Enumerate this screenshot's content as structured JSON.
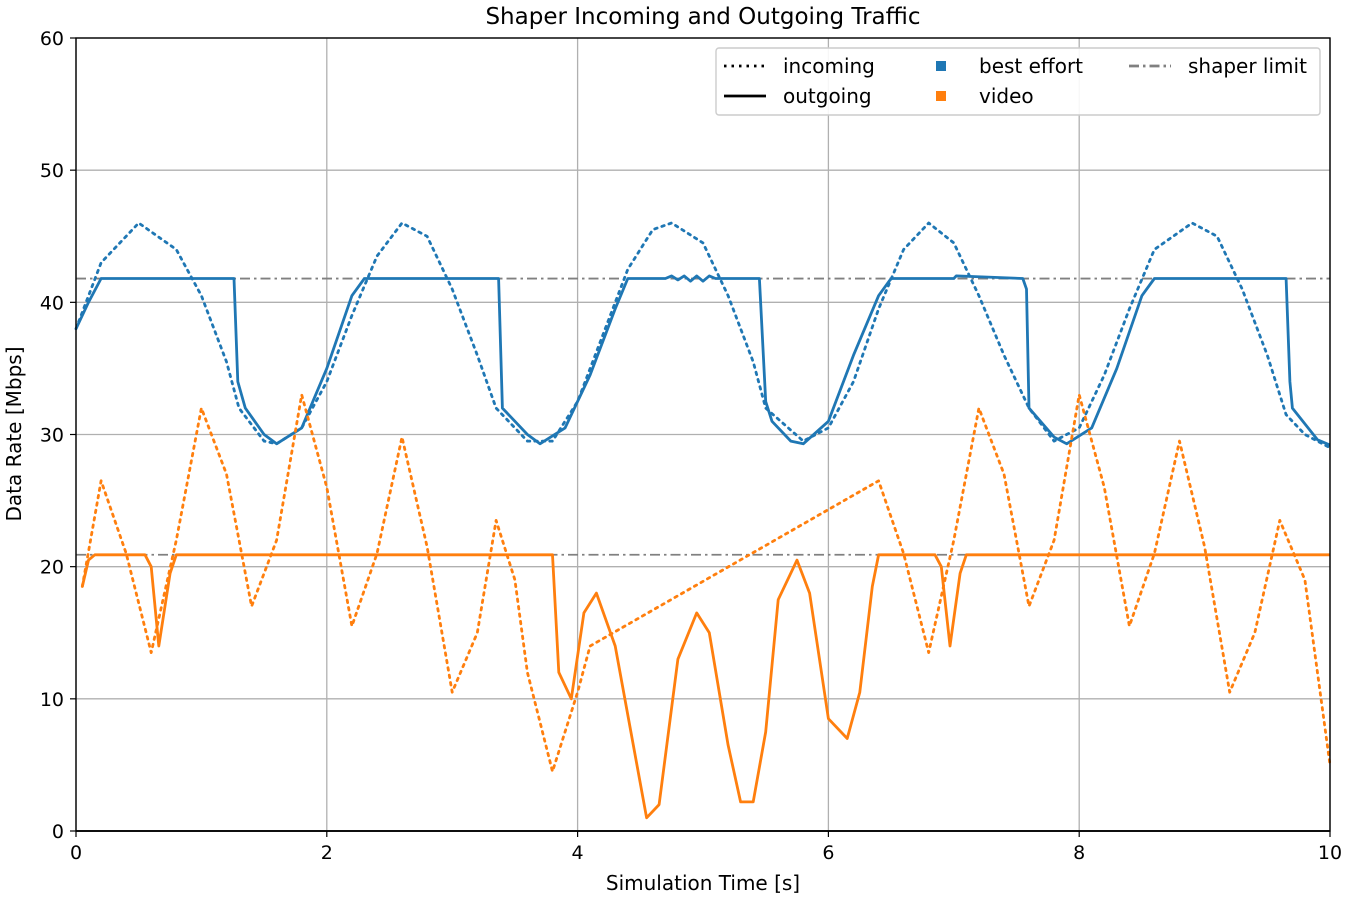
{
  "chart_data": {
    "type": "line",
    "title": "Shaper Incoming and Outgoing Traffic",
    "xlabel": "Simulation Time [s]",
    "ylabel": "Data Rate [Mbps]",
    "xlim": [
      0,
      10
    ],
    "ylim": [
      0,
      60
    ],
    "xticks": [
      0,
      2,
      4,
      6,
      8,
      10
    ],
    "yticks": [
      0,
      10,
      20,
      30,
      40,
      50,
      60
    ],
    "grid": true,
    "legend_position": "top-right",
    "legend": [
      {
        "label": "incoming",
        "kind": "line",
        "style": "dotted",
        "color": "#000000"
      },
      {
        "label": "outgoing",
        "kind": "line",
        "style": "solid",
        "color": "#000000"
      },
      {
        "label": "best effort",
        "kind": "marker",
        "color": "#1f77b4"
      },
      {
        "label": "video",
        "kind": "marker",
        "color": "#ff7f0e"
      },
      {
        "label": "shaper limit",
        "kind": "line",
        "style": "dashdot",
        "color": "#808080"
      }
    ],
    "reference_lines": [
      {
        "name": "shaper limit",
        "y": 41.8,
        "color": "#808080"
      },
      {
        "name": "shaper limit",
        "y": 20.9,
        "color": "#808080"
      }
    ],
    "series": [
      {
        "name": "best effort incoming",
        "traffic": "best effort",
        "direction": "incoming",
        "color": "#1f77b4",
        "style": "dotted",
        "x": [
          0.0,
          0.2,
          0.5,
          0.8,
          1.0,
          1.2,
          1.3,
          1.5,
          1.6,
          1.8,
          2.0,
          2.2,
          2.4,
          2.6,
          2.8,
          3.0,
          3.2,
          3.35,
          3.6,
          3.8,
          4.0,
          4.2,
          4.4,
          4.6,
          4.75,
          5.0,
          5.2,
          5.4,
          5.5,
          5.8,
          6.0,
          6.2,
          6.4,
          6.6,
          6.8,
          7.0,
          7.2,
          7.4,
          7.6,
          7.8,
          8.0,
          8.2,
          8.4,
          8.6,
          8.9,
          9.1,
          9.3,
          9.5,
          9.65,
          9.8,
          10.0
        ],
        "y": [
          38.0,
          43.0,
          46.0,
          44.0,
          40.5,
          35.5,
          32.0,
          29.5,
          29.3,
          30.5,
          34.0,
          39.0,
          43.5,
          46.0,
          45.0,
          41.0,
          36.0,
          32.0,
          29.5,
          29.5,
          32.5,
          37.5,
          42.5,
          45.5,
          46.0,
          44.5,
          40.5,
          35.5,
          32.0,
          29.5,
          30.5,
          34.0,
          39.5,
          44.0,
          46.0,
          44.5,
          40.5,
          36.0,
          32.0,
          29.5,
          30.5,
          34.5,
          39.5,
          44.0,
          46.0,
          45.0,
          41.0,
          36.0,
          31.5,
          30.0,
          29.0
        ]
      },
      {
        "name": "best effort outgoing",
        "traffic": "best effort",
        "direction": "outgoing",
        "color": "#1f77b4",
        "style": "solid",
        "x": [
          0.0,
          0.1,
          0.2,
          0.3,
          1.26,
          1.29,
          1.35,
          1.5,
          1.6,
          1.8,
          2.0,
          2.2,
          2.3,
          3.37,
          3.4,
          3.6,
          3.7,
          3.9,
          4.1,
          4.3,
          4.4,
          4.7,
          4.75,
          4.8,
          4.85,
          4.9,
          4.95,
          5.0,
          5.05,
          5.1,
          5.45,
          5.5,
          5.55,
          5.7,
          5.8,
          6.0,
          6.2,
          6.4,
          6.5,
          7.0,
          7.02,
          7.55,
          7.58,
          7.6,
          7.8,
          7.9,
          8.1,
          8.3,
          8.5,
          8.6,
          9.65,
          9.68,
          9.7,
          9.9,
          10.0
        ],
        "y": [
          38.0,
          40.0,
          41.8,
          41.8,
          41.8,
          34.0,
          32.0,
          30.0,
          29.3,
          30.5,
          35.0,
          40.5,
          41.8,
          41.8,
          32.0,
          30.0,
          29.3,
          30.5,
          34.5,
          39.5,
          41.8,
          41.8,
          42.0,
          41.7,
          42.0,
          41.6,
          42.0,
          41.6,
          42.0,
          41.8,
          41.8,
          32.5,
          31.0,
          29.5,
          29.3,
          31.0,
          36.0,
          40.5,
          41.8,
          41.8,
          42.0,
          41.8,
          41.0,
          32.0,
          29.8,
          29.3,
          30.5,
          35.0,
          40.5,
          41.8,
          41.8,
          34.0,
          32.0,
          29.6,
          29.2
        ]
      },
      {
        "name": "video incoming",
        "traffic": "video",
        "direction": "incoming",
        "color": "#ff7f0e",
        "style": "dotted",
        "x": [
          0.05,
          0.2,
          0.4,
          0.6,
          0.8,
          1.0,
          1.2,
          1.4,
          1.6,
          1.8,
          2.0,
          2.2,
          2.4,
          2.6,
          2.8,
          3.0,
          3.2,
          3.35,
          3.5,
          3.6,
          3.8,
          4.0,
          4.1,
          6.4,
          6.6,
          6.8,
          7.0,
          7.2,
          7.4,
          7.6,
          7.8,
          8.0,
          8.2,
          8.4,
          8.6,
          8.8,
          9.0,
          9.2,
          9.4,
          9.6,
          9.8,
          10.0
        ],
        "y": [
          18.5,
          26.5,
          21.0,
          13.5,
          22.0,
          32.0,
          27.0,
          17.0,
          22.0,
          33.0,
          26.0,
          15.5,
          21.0,
          29.8,
          21.5,
          10.5,
          15.0,
          23.5,
          19.0,
          12.0,
          4.5,
          10.5,
          14.0,
          26.5,
          21.0,
          13.5,
          22.0,
          32.0,
          27.0,
          17.0,
          22.0,
          33.0,
          26.0,
          15.5,
          21.0,
          29.5,
          21.5,
          10.5,
          15.0,
          23.5,
          19.0,
          5.0
        ]
      },
      {
        "name": "video outgoing",
        "traffic": "video",
        "direction": "outgoing",
        "color": "#ff7f0e",
        "style": "solid",
        "x": [
          0.05,
          0.1,
          0.15,
          0.55,
          0.6,
          0.66,
          0.75,
          0.8,
          3.8,
          3.85,
          3.95,
          4.05,
          4.15,
          4.3,
          4.55,
          4.65,
          4.8,
          4.95,
          5.05,
          5.2,
          5.3,
          5.4,
          5.5,
          5.6,
          5.75,
          5.85,
          6.0,
          6.15,
          6.25,
          6.35,
          6.4,
          6.85,
          6.9,
          6.97,
          7.05,
          7.1,
          10.0
        ],
        "y": [
          18.5,
          20.5,
          20.9,
          20.9,
          20.0,
          14.0,
          19.5,
          20.9,
          20.9,
          12.0,
          10.0,
          16.5,
          18.0,
          14.0,
          1.0,
          2.0,
          13.0,
          16.5,
          15.0,
          6.5,
          2.2,
          2.2,
          7.5,
          17.5,
          20.5,
          18.0,
          8.5,
          7.0,
          10.5,
          18.5,
          20.9,
          20.9,
          20.0,
          14.0,
          19.5,
          20.9,
          20.9
        ]
      }
    ]
  }
}
